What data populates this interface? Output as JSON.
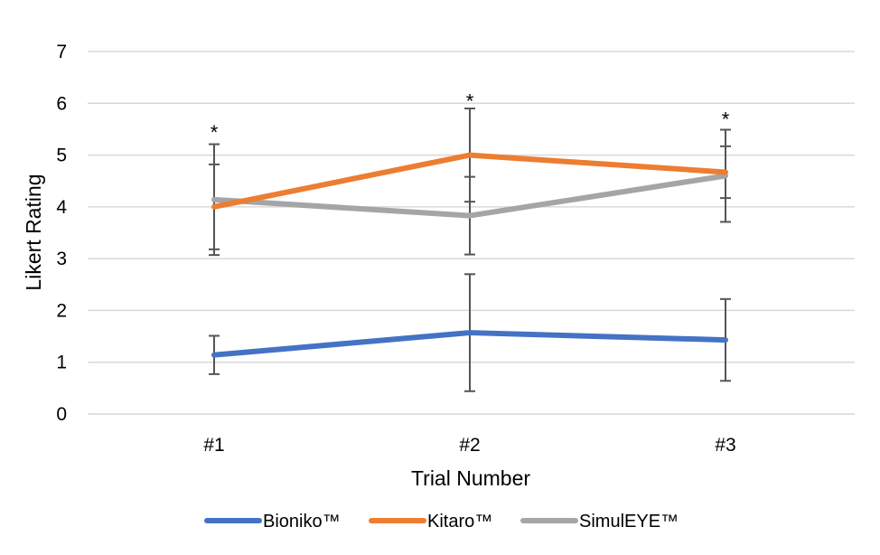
{
  "chart_data": {
    "type": "line",
    "title": "",
    "xlabel": "Trial Number",
    "ylabel": "Likert Rating",
    "ylim": [
      0,
      7
    ],
    "yticks": [
      0,
      1,
      2,
      3,
      4,
      5,
      6,
      7
    ],
    "grid": true,
    "legend_position": "bottom",
    "categories": [
      "#1",
      "#2",
      "#3"
    ],
    "series": [
      {
        "name": "Bioniko™",
        "color": "#4472C4",
        "values": [
          1.14,
          1.57,
          1.43
        ],
        "error": [
          0.37,
          1.13,
          0.79
        ]
      },
      {
        "name": "Kitaro™",
        "color": "#ED7D31",
        "values": [
          4.0,
          5.0,
          4.67
        ],
        "error": [
          0.82,
          0.9,
          0.5
        ]
      },
      {
        "name": "SimulEYE™",
        "color": "#A5A5A5",
        "values": [
          4.14,
          3.83,
          4.6
        ],
        "error": [
          1.07,
          0.75,
          0.89
        ]
      }
    ],
    "annotations": [
      {
        "category": "#1",
        "text": "*",
        "y": 5.55
      },
      {
        "category": "#2",
        "text": "*",
        "y": 6.15
      },
      {
        "category": "#3",
        "text": "*",
        "y": 5.8
      }
    ]
  }
}
